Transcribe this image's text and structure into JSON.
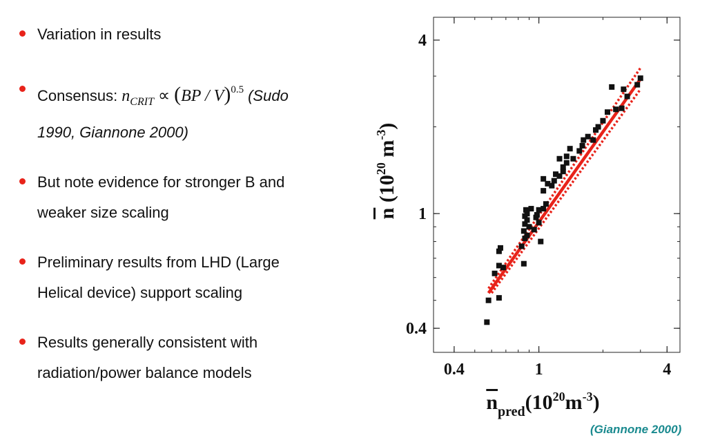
{
  "bullets": [
    {
      "text": "Variation in results"
    },
    {
      "prefix": "Consensus: ",
      "formula": {
        "n": "n",
        "sub": "CRIT",
        "prop": "∝",
        "inner": "BP / V",
        "exp": "0.5"
      },
      "suffix_line1": " (Sudo",
      "suffix_line2": "1990, Giannone 2000)"
    },
    {
      "line1": "But note evidence for stronger B and",
      "line2": "weaker size scaling"
    },
    {
      "line1": "Preliminary results from LHD (Large",
      "line2": "Helical device) support scaling"
    },
    {
      "line1": "Results generally consistent with",
      "line2": "radiation/power balance models"
    }
  ],
  "credit": "(Giannone 2000)",
  "colors": {
    "bullet_dot": "#e8231a",
    "fit_line": "#e8231a",
    "points": "#111111",
    "credit": "#1a8a8f"
  },
  "chart_data": {
    "type": "scatter",
    "xscale": "log",
    "yscale": "log",
    "xlim": [
      0.32,
      4.6
    ],
    "ylim": [
      0.33,
      4.8
    ],
    "xticks": [
      0.4,
      1,
      4
    ],
    "xtick_labels": [
      "0.4",
      "1",
      "4"
    ],
    "yticks": [
      0.4,
      1,
      4
    ],
    "ytick_labels": [
      "0.4",
      "1",
      "4"
    ],
    "xlabel": {
      "base": "n",
      "sub": "pred",
      "units": "(10",
      "units_exp": "20",
      "units_rest": "m",
      "units_exp2": "-3",
      "units_close": ")"
    },
    "ylabel": {
      "base": "n",
      "units": "(10",
      "units_exp": "20",
      "units_rest": " m",
      "units_exp2": "-3",
      "units_close": ")"
    },
    "grid": false,
    "series": [
      {
        "type": "scatter",
        "marker": "square",
        "points": [
          [
            0.57,
            0.42
          ],
          [
            0.58,
            0.5
          ],
          [
            0.62,
            0.62
          ],
          [
            0.65,
            0.51
          ],
          [
            0.65,
            0.66
          ],
          [
            0.65,
            0.74
          ],
          [
            0.66,
            0.76
          ],
          [
            0.68,
            0.65
          ],
          [
            0.85,
            0.67
          ],
          [
            0.83,
            0.77
          ],
          [
            0.86,
            0.82
          ],
          [
            0.85,
            0.87
          ],
          [
            0.88,
            0.84
          ],
          [
            0.9,
            0.9
          ],
          [
            0.86,
            0.92
          ],
          [
            0.88,
            0.95
          ],
          [
            0.86,
            0.98
          ],
          [
            0.88,
            1.0
          ],
          [
            0.87,
            1.03
          ],
          [
            0.92,
            1.04
          ],
          [
            0.95,
            0.88
          ],
          [
            1.0,
            0.93
          ],
          [
            1.02,
            0.8
          ],
          [
            0.97,
            0.97
          ],
          [
            1.0,
            1.03
          ],
          [
            1.05,
            1.04
          ],
          [
            1.08,
            1.08
          ],
          [
            0.98,
            0.99
          ],
          [
            1.05,
            1.2
          ],
          [
            1.1,
            1.27
          ],
          [
            1.15,
            1.25
          ],
          [
            1.05,
            1.32
          ],
          [
            1.18,
            1.3
          ],
          [
            1.2,
            1.37
          ],
          [
            1.25,
            1.35
          ],
          [
            1.3,
            1.4
          ],
          [
            1.3,
            1.45
          ],
          [
            1.25,
            1.55
          ],
          [
            1.35,
            1.58
          ],
          [
            1.45,
            1.55
          ],
          [
            1.35,
            1.5
          ],
          [
            1.4,
            1.68
          ],
          [
            1.55,
            1.65
          ],
          [
            1.6,
            1.72
          ],
          [
            1.62,
            1.8
          ],
          [
            1.7,
            1.85
          ],
          [
            1.8,
            1.8
          ],
          [
            1.85,
            1.95
          ],
          [
            1.9,
            2.0
          ],
          [
            2.0,
            2.1
          ],
          [
            2.1,
            2.25
          ],
          [
            2.3,
            2.3
          ],
          [
            2.45,
            2.32
          ],
          [
            2.5,
            2.7
          ],
          [
            2.6,
            2.55
          ],
          [
            2.2,
            2.75
          ],
          [
            2.9,
            2.8
          ],
          [
            3.0,
            2.95
          ]
        ]
      },
      {
        "type": "line",
        "style": "solid",
        "x": [
          0.58,
          3.0
        ],
        "y": [
          0.53,
          2.93
        ]
      },
      {
        "type": "line",
        "style": "dotted",
        "x": [
          0.58,
          3.0
        ],
        "y": [
          0.55,
          3.2
        ]
      },
      {
        "type": "line",
        "style": "dotted",
        "x": [
          0.6,
          3.0
        ],
        "y": [
          0.53,
          2.7
        ]
      }
    ]
  }
}
